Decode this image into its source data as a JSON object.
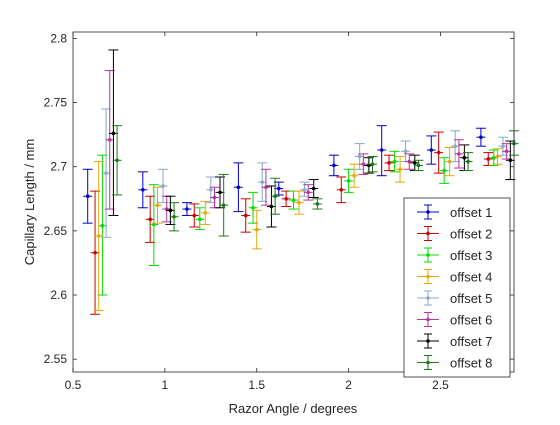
{
  "chart_data": {
    "type": "scatter",
    "title": "",
    "xlabel": "Razor Angle / degrees",
    "ylabel": "Capillary Length / mm",
    "xlim": [
      0.5,
      2.9
    ],
    "ylim": [
      2.54,
      2.805
    ],
    "xticks": [
      "0.5",
      "1",
      "1.5",
      "2",
      "2.5"
    ],
    "xtick_values": [
      0.5,
      1,
      1.5,
      2,
      2.5
    ],
    "yticks": [
      "2.55",
      "2.6",
      "2.65",
      "2.7",
      "2.75",
      "2.8"
    ],
    "ytick_values": [
      2.55,
      2.6,
      2.65,
      2.7,
      2.75,
      2.8
    ],
    "grid": false,
    "legend_position": "bottom-right",
    "marker": "point with vertical and horizontal error bars",
    "series": [
      {
        "name": "offset 1",
        "color": "#0000cc",
        "points": [
          {
            "x": 0.58,
            "y": 2.677,
            "ylo": 2.656,
            "yhi": 2.698
          },
          {
            "x": 0.88,
            "y": 2.682,
            "ylo": 2.668,
            "yhi": 2.696
          },
          {
            "x": 1.12,
            "y": 2.667,
            "ylo": 2.662,
            "yhi": 2.672
          },
          {
            "x": 1.4,
            "y": 2.684,
            "ylo": 2.665,
            "yhi": 2.703
          },
          {
            "x": 1.62,
            "y": 2.683,
            "ylo": 2.678,
            "yhi": 2.688
          },
          {
            "x": 1.92,
            "y": 2.701,
            "ylo": 2.693,
            "yhi": 2.709
          },
          {
            "x": 2.18,
            "y": 2.713,
            "ylo": 2.693,
            "yhi": 2.732
          },
          {
            "x": 2.45,
            "y": 2.713,
            "ylo": 2.702,
            "yhi": 2.724
          },
          {
            "x": 2.72,
            "y": 2.723,
            "ylo": 2.716,
            "yhi": 2.73
          }
        ]
      },
      {
        "name": "offset 2",
        "color": "#cc0000",
        "points": [
          {
            "x": 0.62,
            "y": 2.633,
            "ylo": 2.585,
            "yhi": 2.681
          },
          {
            "x": 0.92,
            "y": 2.659,
            "ylo": 2.641,
            "yhi": 2.677
          },
          {
            "x": 1.16,
            "y": 2.662,
            "ylo": 2.653,
            "yhi": 2.671
          },
          {
            "x": 1.44,
            "y": 2.662,
            "ylo": 2.649,
            "yhi": 2.675
          },
          {
            "x": 1.66,
            "y": 2.675,
            "ylo": 2.669,
            "yhi": 2.681
          },
          {
            "x": 1.96,
            "y": 2.682,
            "ylo": 2.672,
            "yhi": 2.692
          },
          {
            "x": 2.22,
            "y": 2.703,
            "ylo": 2.697,
            "yhi": 2.709
          },
          {
            "x": 2.49,
            "y": 2.711,
            "ylo": 2.695,
            "yhi": 2.727
          },
          {
            "x": 2.76,
            "y": 2.706,
            "ylo": 2.701,
            "yhi": 2.711
          }
        ]
      },
      {
        "name": "offset 3",
        "color": "#00dd00",
        "points": [
          {
            "x": 0.66,
            "y": 2.654,
            "ylo": 2.6,
            "yhi": 2.709
          },
          {
            "x": 0.94,
            "y": 2.655,
            "ylo": 2.623,
            "yhi": 2.686
          },
          {
            "x": 1.19,
            "y": 2.659,
            "ylo": 2.651,
            "yhi": 2.668
          },
          {
            "x": 1.48,
            "y": 2.668,
            "ylo": 2.656,
            "yhi": 2.68
          },
          {
            "x": 1.7,
            "y": 2.674,
            "ylo": 2.667,
            "yhi": 2.681
          },
          {
            "x": 2.0,
            "y": 2.689,
            "ylo": 2.68,
            "yhi": 2.698
          },
          {
            "x": 2.25,
            "y": 2.704,
            "ylo": 2.696,
            "yhi": 2.712
          },
          {
            "x": 2.52,
            "y": 2.697,
            "ylo": 2.687,
            "yhi": 2.707
          },
          {
            "x": 2.79,
            "y": 2.707,
            "ylo": 2.701,
            "yhi": 2.713
          }
        ]
      },
      {
        "name": "offset 4",
        "color": "#e6a800",
        "points": [
          {
            "x": 0.64,
            "y": 2.646,
            "ylo": 2.588,
            "yhi": 2.704
          },
          {
            "x": 0.96,
            "y": 2.67,
            "ylo": 2.656,
            "yhi": 2.684
          },
          {
            "x": 1.22,
            "y": 2.664,
            "ylo": 2.655,
            "yhi": 2.673
          },
          {
            "x": 1.5,
            "y": 2.651,
            "ylo": 2.636,
            "yhi": 2.666
          },
          {
            "x": 1.73,
            "y": 2.672,
            "ylo": 2.663,
            "yhi": 2.681
          },
          {
            "x": 2.03,
            "y": 2.693,
            "ylo": 2.684,
            "yhi": 2.702
          },
          {
            "x": 2.28,
            "y": 2.698,
            "ylo": 2.688,
            "yhi": 2.708
          },
          {
            "x": 2.55,
            "y": 2.704,
            "ylo": 2.693,
            "yhi": 2.715
          },
          {
            "x": 2.81,
            "y": 2.708,
            "ylo": 2.702,
            "yhi": 2.714
          }
        ]
      },
      {
        "name": "offset 5",
        "color": "#8aa8c8",
        "points": [
          {
            "x": 0.68,
            "y": 2.695,
            "ylo": 2.645,
            "yhi": 2.745
          },
          {
            "x": 0.99,
            "y": 2.685,
            "ylo": 2.672,
            "yhi": 2.698
          },
          {
            "x": 1.25,
            "y": 2.682,
            "ylo": 2.672,
            "yhi": 2.692
          },
          {
            "x": 1.53,
            "y": 2.688,
            "ylo": 2.673,
            "yhi": 2.703
          },
          {
            "x": 1.76,
            "y": 2.682,
            "ylo": 2.677,
            "yhi": 2.688
          },
          {
            "x": 2.06,
            "y": 2.708,
            "ylo": 2.698,
            "yhi": 2.718
          },
          {
            "x": 2.31,
            "y": 2.712,
            "ylo": 2.704,
            "yhi": 2.72
          },
          {
            "x": 2.58,
            "y": 2.716,
            "ylo": 2.704,
            "yhi": 2.728
          },
          {
            "x": 2.84,
            "y": 2.716,
            "ylo": 2.709,
            "yhi": 2.723
          }
        ]
      },
      {
        "name": "offset 6",
        "color": "#b8349e",
        "points": [
          {
            "x": 0.7,
            "y": 2.721,
            "ylo": 2.667,
            "yhi": 2.775
          },
          {
            "x": 1.01,
            "y": 2.667,
            "ylo": 2.657,
            "yhi": 2.677
          },
          {
            "x": 1.27,
            "y": 2.676,
            "ylo": 2.668,
            "yhi": 2.684
          },
          {
            "x": 1.55,
            "y": 2.684,
            "ylo": 2.67,
            "yhi": 2.698
          },
          {
            "x": 1.78,
            "y": 2.68,
            "ylo": 2.674,
            "yhi": 2.686
          },
          {
            "x": 2.08,
            "y": 2.702,
            "ylo": 2.694,
            "yhi": 2.71
          },
          {
            "x": 2.33,
            "y": 2.704,
            "ylo": 2.698,
            "yhi": 2.71
          },
          {
            "x": 2.6,
            "y": 2.71,
            "ylo": 2.699,
            "yhi": 2.721
          },
          {
            "x": 2.86,
            "y": 2.712,
            "ylo": 2.706,
            "yhi": 2.718
          }
        ]
      },
      {
        "name": "offset 7",
        "color": "#000000",
        "points": [
          {
            "x": 0.72,
            "y": 2.726,
            "ylo": 2.662,
            "yhi": 2.791
          },
          {
            "x": 1.03,
            "y": 2.666,
            "ylo": 2.655,
            "yhi": 2.677
          },
          {
            "x": 1.3,
            "y": 2.68,
            "ylo": 2.668,
            "yhi": 2.692
          },
          {
            "x": 1.58,
            "y": 2.669,
            "ylo": 2.653,
            "yhi": 2.685
          },
          {
            "x": 1.81,
            "y": 2.683,
            "ylo": 2.676,
            "yhi": 2.69
          },
          {
            "x": 2.11,
            "y": 2.701,
            "ylo": 2.695,
            "yhi": 2.707
          },
          {
            "x": 2.36,
            "y": 2.703,
            "ylo": 2.697,
            "yhi": 2.709
          },
          {
            "x": 2.63,
            "y": 2.707,
            "ylo": 2.697,
            "yhi": 2.717
          },
          {
            "x": 2.88,
            "y": 2.705,
            "ylo": 2.69,
            "yhi": 2.72
          }
        ]
      },
      {
        "name": "offset 8",
        "color": "#1a7a1a",
        "points": [
          {
            "x": 0.74,
            "y": 2.705,
            "ylo": 2.678,
            "yhi": 2.732
          },
          {
            "x": 1.05,
            "y": 2.661,
            "ylo": 2.65,
            "yhi": 2.672
          },
          {
            "x": 1.32,
            "y": 2.67,
            "ylo": 2.646,
            "yhi": 2.694
          },
          {
            "x": 1.6,
            "y": 2.677,
            "ylo": 2.663,
            "yhi": 2.691
          },
          {
            "x": 1.83,
            "y": 2.671,
            "ylo": 2.667,
            "yhi": 2.675
          },
          {
            "x": 2.13,
            "y": 2.702,
            "ylo": 2.696,
            "yhi": 2.708
          },
          {
            "x": 2.38,
            "y": 2.701,
            "ylo": 2.697,
            "yhi": 2.705
          },
          {
            "x": 2.65,
            "y": 2.704,
            "ylo": 2.697,
            "yhi": 2.711
          },
          {
            "x": 2.9,
            "y": 2.718,
            "ylo": 2.709,
            "yhi": 2.728
          }
        ]
      }
    ]
  }
}
